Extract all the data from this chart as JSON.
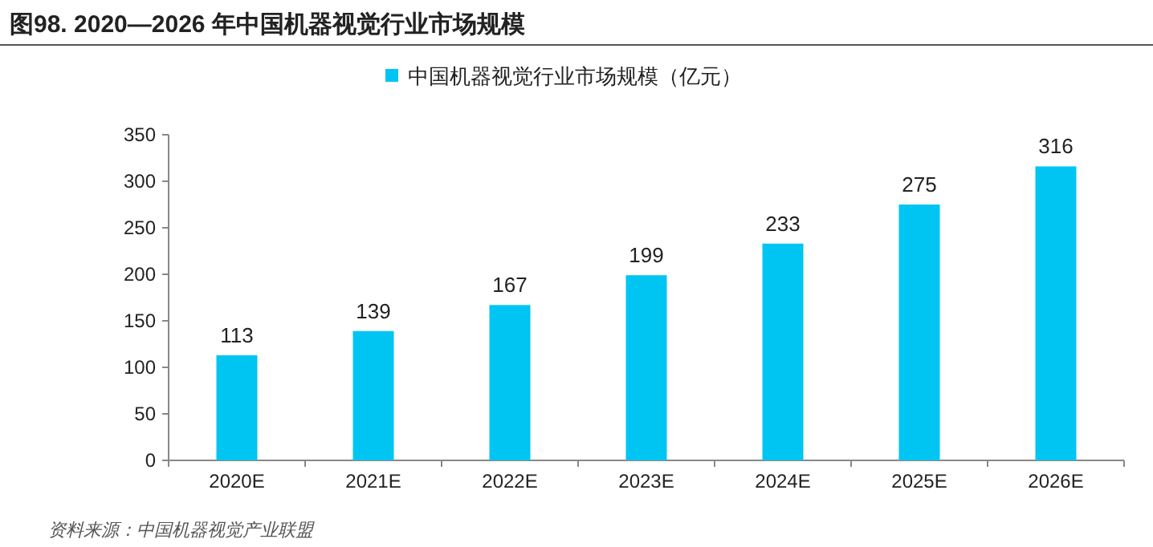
{
  "chart_data": {
    "type": "bar",
    "title": "图98. 2020—2026 年中国机器视觉行业市场规模",
    "categories": [
      "2020E",
      "2021E",
      "2022E",
      "2023E",
      "2024E",
      "2025E",
      "2026E"
    ],
    "series": [
      {
        "name": "中国机器视觉行业市场规模（亿元）",
        "color": "#00c5f3",
        "values": [
          113,
          139,
          167,
          199,
          233,
          275,
          316
        ]
      }
    ],
    "ylim": [
      0,
      350
    ],
    "yticks": [
      0,
      50,
      100,
      150,
      200,
      250,
      300,
      350
    ],
    "data_labels": true,
    "legend": "top",
    "grid": false,
    "annotations": [
      "资料来源：中国机器视觉产业联盟"
    ]
  }
}
